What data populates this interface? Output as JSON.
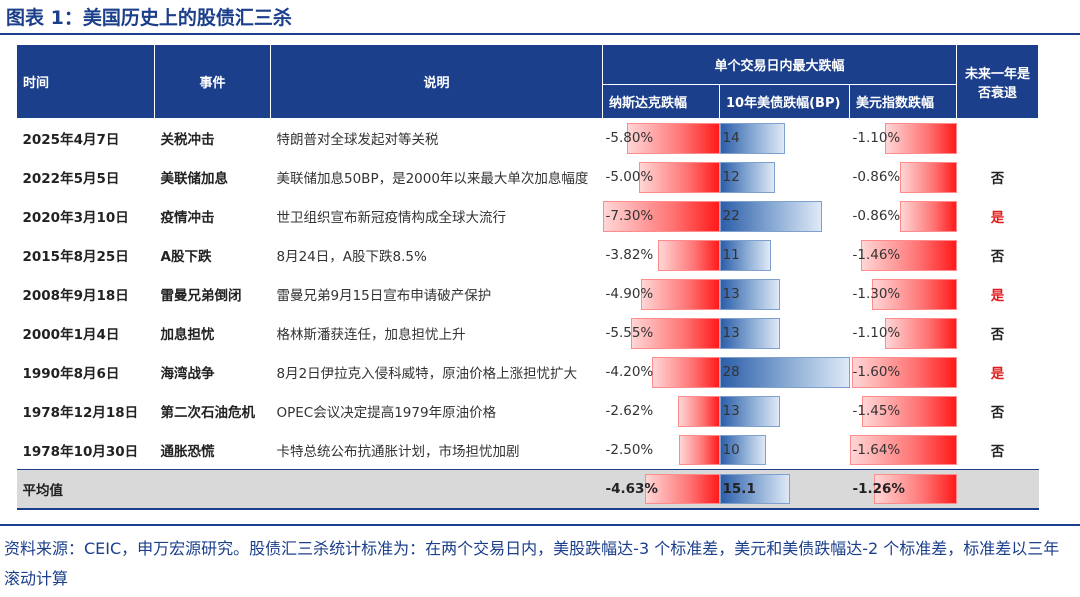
{
  "title": "图表 1：美国历史上的股债汇三杀",
  "headers": {
    "date": "时间",
    "event": "事件",
    "desc": "说明",
    "group": "单个交易日内最大跌幅",
    "nasdaq": "纳斯达克跌幅",
    "ust10": "10年美债跌幅(BP)",
    "dxy": "美元指数跌幅",
    "recession": "未来一年是否衰退"
  },
  "rows": [
    {
      "date": "2025年4月7日",
      "event": "关税冲击",
      "desc": "特朗普对全球发起对等关税",
      "nasdaq": "-5.80%",
      "nasdaq_v": -5.8,
      "ust": "14",
      "ust_v": 14,
      "dxy": "-1.10%",
      "dxy_v": -1.1,
      "recession": "",
      "recession_flag": "none"
    },
    {
      "date": "2022年5月5日",
      "event": "美联储加息",
      "desc": "美联储加息50BP，是2000年以来最大单次加息幅度",
      "nasdaq": "-5.00%",
      "nasdaq_v": -5.0,
      "ust": "12",
      "ust_v": 12,
      "dxy": "-0.86%",
      "dxy_v": -0.86,
      "recession": "否",
      "recession_flag": "no"
    },
    {
      "date": "2020年3月10日",
      "event": "疫情冲击",
      "desc": "世卫组织宣布新冠疫情构成全球大流行",
      "nasdaq": "-7.30%",
      "nasdaq_v": -7.3,
      "ust": "22",
      "ust_v": 22,
      "dxy": "-0.86%",
      "dxy_v": -0.86,
      "recession": "是",
      "recession_flag": "yes"
    },
    {
      "date": "2015年8月25日",
      "event": "A股下跌",
      "desc": "8月24日，A股下跌8.5%",
      "nasdaq": "-3.82%",
      "nasdaq_v": -3.82,
      "ust": "11",
      "ust_v": 11,
      "dxy": "-1.46%",
      "dxy_v": -1.46,
      "recession": "否",
      "recession_flag": "no"
    },
    {
      "date": "2008年9月18日",
      "event": "雷曼兄弟倒闭",
      "desc": "雷曼兄弟9月15日宣布申请破产保护",
      "nasdaq": "-4.90%",
      "nasdaq_v": -4.9,
      "ust": "13",
      "ust_v": 13,
      "dxy": "-1.30%",
      "dxy_v": -1.3,
      "recession": "是",
      "recession_flag": "yes"
    },
    {
      "date": "2000年1月4日",
      "event": "加息担忧",
      "desc": "格林斯潘获连任，加息担忧上升",
      "nasdaq": "-5.55%",
      "nasdaq_v": -5.55,
      "ust": "13",
      "ust_v": 13,
      "dxy": "-1.10%",
      "dxy_v": -1.1,
      "recession": "否",
      "recession_flag": "no"
    },
    {
      "date": "1990年8月6日",
      "event": "海湾战争",
      "desc": "8月2日伊拉克入侵科威特，原油价格上涨担忧扩大",
      "nasdaq": "-4.20%",
      "nasdaq_v": -4.2,
      "ust": "28",
      "ust_v": 28,
      "dxy": "-1.60%",
      "dxy_v": -1.6,
      "recession": "是",
      "recession_flag": "yes"
    },
    {
      "date": "1978年12月18日",
      "event": "第二次石油危机",
      "desc": "OPEC会议决定提高1979年原油价格",
      "nasdaq": "-2.62%",
      "nasdaq_v": -2.62,
      "ust": "13",
      "ust_v": 13,
      "dxy": "-1.45%",
      "dxy_v": -1.45,
      "recession": "否",
      "recession_flag": "no"
    },
    {
      "date": "1978年10月30日",
      "event": "通胀恐慌",
      "desc": "卡特总统公布抗通胀计划，市场担忧加剧",
      "nasdaq": "-2.50%",
      "nasdaq_v": -2.5,
      "ust": "10",
      "ust_v": 10,
      "dxy": "-1.64%",
      "dxy_v": -1.64,
      "recession": "否",
      "recession_flag": "no"
    }
  ],
  "average": {
    "label": "平均值",
    "nasdaq": "-4.63%",
    "nasdaq_v": -4.63,
    "ust": "15.1",
    "ust_v": 15.1,
    "dxy": "-1.26%",
    "dxy_v": -1.26
  },
  "source": "资料来源：CEIC，申万宏源研究。股债汇三杀统计标准为：在两个交易日内，美股跌幅达-3 个标准差，美元和美债跌幅达-2 个标准差，标准差以三年滚动计算",
  "colors": {
    "navy": "#1b3f8b",
    "red_flag": "#e01c1c",
    "neg_bar": "#ff1a1a",
    "pos_bar": "#2c5ea9"
  }
}
